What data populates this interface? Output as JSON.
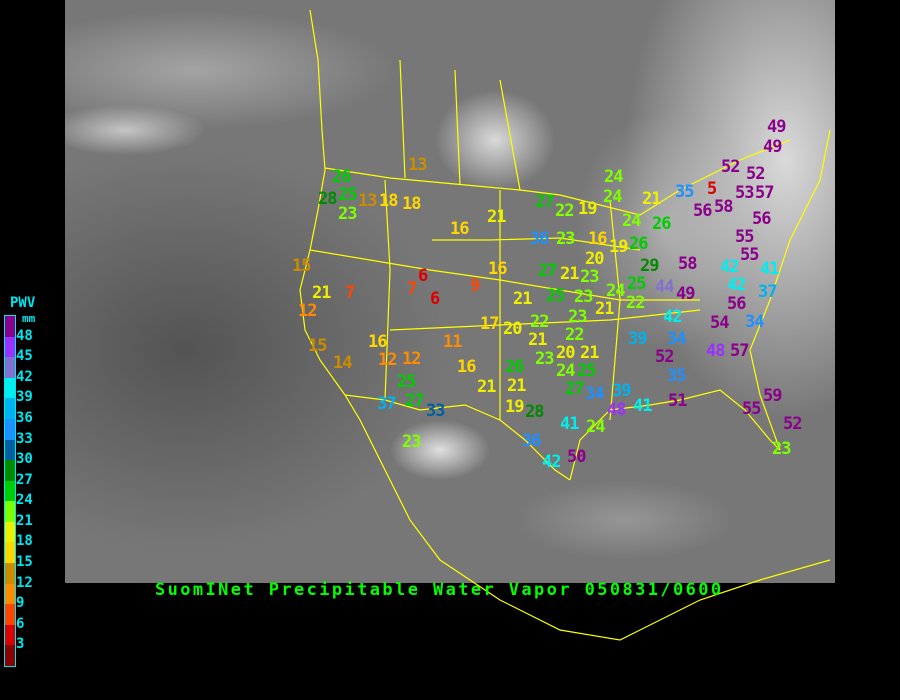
{
  "caption": "SuomINet Precipitable Water Vapor 050831/0600",
  "legend": {
    "title": "PWV",
    "unit": "mm",
    "tick_labels": [
      "48",
      "45",
      "42",
      "39",
      "36",
      "33",
      "30",
      "27",
      "24",
      "21",
      "18",
      "15",
      "12",
      "9",
      "6",
      "3"
    ],
    "bin_colors_top_to_bottom": [
      "#8b008b",
      "#9b30ff",
      "#8470d0",
      "#00eeee",
      "#00b2ee",
      "#1e90ff",
      "#005f9f",
      "#008b00",
      "#00cd00",
      "#7fff00",
      "#eeee00",
      "#ffd700",
      "#cd8c00",
      "#ff8c00",
      "#ff4500",
      "#dd0000",
      "#8b0000"
    ]
  },
  "map": {
    "border_color": "#ffff00"
  },
  "stations": [
    "26",
    "25",
    "28",
    "13",
    "18",
    "18",
    "23",
    "13",
    "16",
    "15",
    "21",
    "7",
    "12",
    "6",
    "7",
    "6",
    "9",
    "15",
    "14",
    "16",
    "12",
    "12",
    "11",
    "16",
    "17",
    "20",
    "21",
    "16",
    "27",
    "22",
    "19",
    "24",
    "24",
    "21",
    "35",
    "24",
    "26",
    "16",
    "19",
    "26",
    "36",
    "23",
    "20",
    "29",
    "25",
    "24",
    "22",
    "21",
    "44",
    "49",
    "58",
    "27",
    "21",
    "23",
    "21",
    "25",
    "23",
    "22",
    "23",
    "21",
    "22",
    "23",
    "20",
    "24",
    "21",
    "26",
    "25",
    "39",
    "49",
    "49",
    "52",
    "52",
    "5",
    "53",
    "57",
    "58",
    "56",
    "56",
    "55",
    "55",
    "41",
    "42",
    "42",
    "56",
    "37",
    "42",
    "54",
    "34",
    "34",
    "52",
    "48",
    "57",
    "35",
    "39",
    "48",
    "41",
    "51",
    "59",
    "55",
    "52",
    "23",
    "25",
    "27",
    "33",
    "37",
    "23",
    "21",
    "21",
    "19",
    "28",
    "27",
    "34",
    "41",
    "24",
    "36",
    "42",
    "50"
  ]
}
